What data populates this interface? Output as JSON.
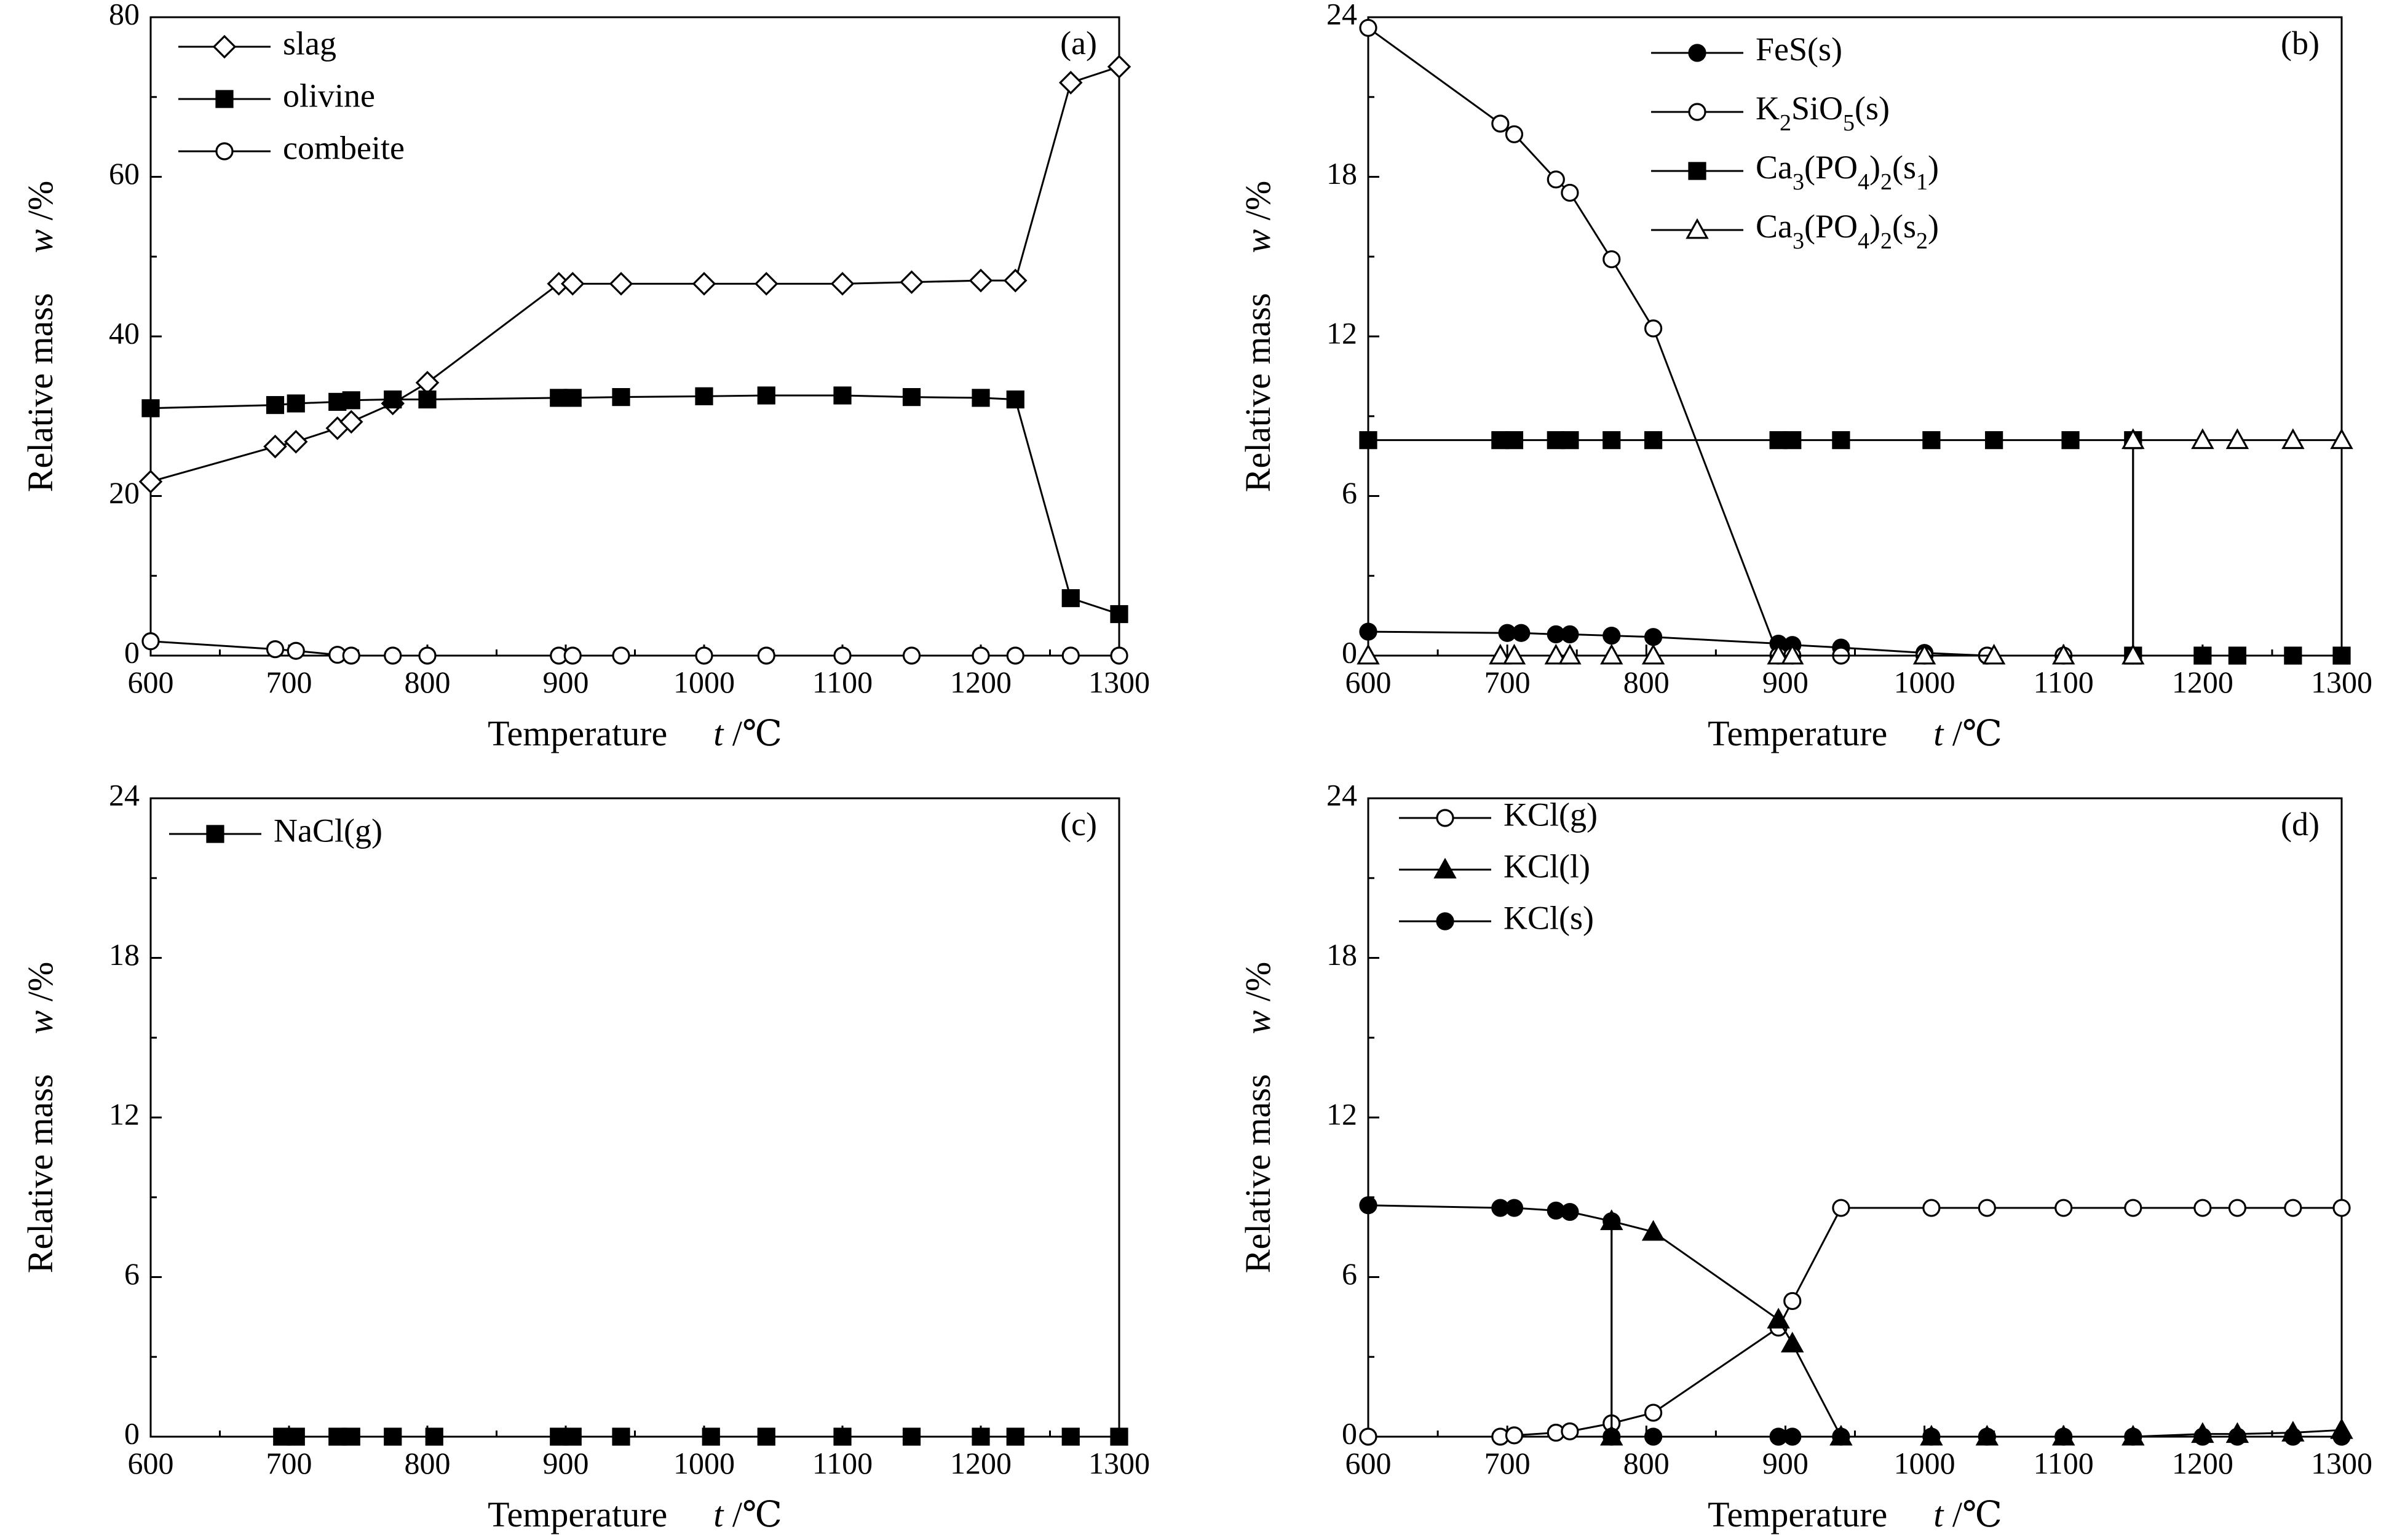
{
  "figure": {
    "x_axis_label": "Temperature",
    "x_axis_symbol": "t",
    "x_axis_unit": "/℃",
    "y_axis_label": "Relative mass",
    "y_axis_symbol": "w",
    "y_axis_unit": "/%"
  },
  "chart_data": [
    {
      "type": "line",
      "label": "(a)",
      "xlim": [
        600,
        1300
      ],
      "ylim": [
        0,
        80
      ],
      "x_ticks": [
        600,
        700,
        800,
        900,
        1000,
        1100,
        1200,
        1300
      ],
      "y_ticks": [
        0,
        20,
        40,
        60,
        80
      ],
      "legend_position": "top-left",
      "series": [
        {
          "name": "slag",
          "marker": "diamond-open",
          "points": [
            [
              600,
              21.8
            ],
            [
              690,
              26.2
            ],
            [
              705,
              26.8
            ],
            [
              735,
              28.5
            ],
            [
              745,
              29.3
            ],
            [
              775,
              31.6
            ],
            [
              800,
              34.2
            ],
            [
              895,
              46.6
            ],
            [
              905,
              46.6
            ],
            [
              940,
              46.6
            ],
            [
              1000,
              46.6
            ],
            [
              1045,
              46.6
            ],
            [
              1100,
              46.6
            ],
            [
              1150,
              46.8
            ],
            [
              1200,
              47
            ],
            [
              1225,
              47
            ],
            [
              1265,
              71.8
            ],
            [
              1300,
              73.8
            ]
          ]
        },
        {
          "name": "olivine",
          "marker": "square-filled",
          "points": [
            [
              600,
              31
            ],
            [
              690,
              31.4
            ],
            [
              705,
              31.6
            ],
            [
              735,
              31.8
            ],
            [
              745,
              32
            ],
            [
              775,
              32.1
            ],
            [
              800,
              32.1
            ],
            [
              895,
              32.3
            ],
            [
              905,
              32.3
            ],
            [
              940,
              32.4
            ],
            [
              1000,
              32.5
            ],
            [
              1045,
              32.6
            ],
            [
              1100,
              32.6
            ],
            [
              1150,
              32.4
            ],
            [
              1200,
              32.3
            ],
            [
              1225,
              32.1
            ],
            [
              1265,
              7.2
            ],
            [
              1300,
              5.2
            ]
          ]
        },
        {
          "name": "combeite",
          "marker": "circle-open",
          "points": [
            [
              600,
              1.8
            ],
            [
              690,
              0.8
            ],
            [
              705,
              0.6
            ],
            [
              735,
              0.1
            ],
            [
              745,
              0
            ],
            [
              775,
              0
            ],
            [
              800,
              0
            ],
            [
              895,
              0
            ],
            [
              905,
              0
            ],
            [
              940,
              0
            ],
            [
              1000,
              0
            ],
            [
              1045,
              0
            ],
            [
              1100,
              0
            ],
            [
              1150,
              0
            ],
            [
              1200,
              0
            ],
            [
              1225,
              0
            ],
            [
              1265,
              0
            ],
            [
              1300,
              0
            ]
          ]
        }
      ]
    },
    {
      "type": "line",
      "label": "(b)",
      "xlim": [
        600,
        1300
      ],
      "ylim": [
        0,
        24
      ],
      "x_ticks": [
        600,
        700,
        800,
        900,
        1000,
        1100,
        1200,
        1300
      ],
      "y_ticks": [
        0,
        6,
        12,
        18,
        24
      ],
      "legend_position": "top-center",
      "series": [
        {
          "name": "FeS(s)",
          "legend": {
            "base": "FeS(s)"
          },
          "marker": "circle-filled",
          "points": [
            [
              600,
              0.9
            ],
            [
              700,
              0.85
            ],
            [
              710,
              0.85
            ],
            [
              735,
              0.8
            ],
            [
              745,
              0.8
            ],
            [
              775,
              0.75
            ],
            [
              805,
              0.7
            ],
            [
              895,
              0.45
            ],
            [
              905,
              0.4
            ],
            [
              940,
              0.3
            ],
            [
              1000,
              0.1
            ],
            [
              1045,
              0
            ]
          ]
        },
        {
          "name": "K2SiO5(s)",
          "legend": {
            "base": "K",
            "s1": "2",
            "mid": "SiO",
            "s2": "5",
            "end": "(s)"
          },
          "marker": "circle-open",
          "points": [
            [
              600,
              23.6
            ],
            [
              695,
              20
            ],
            [
              705,
              19.6
            ],
            [
              735,
              17.9
            ],
            [
              745,
              17.4
            ],
            [
              775,
              14.9
            ],
            [
              805,
              12.3
            ],
            [
              895,
              0
            ],
            [
              905,
              0
            ],
            [
              940,
              0
            ],
            [
              1000,
              0
            ],
            [
              1045,
              0
            ],
            [
              1100,
              0
            ],
            [
              1150,
              0
            ]
          ]
        },
        {
          "name": "Ca3(PO4)2(s1)",
          "legend": {
            "base": "Ca",
            "s1": "3",
            "mid": "(PO",
            "s2": "4",
            "mid2": ")",
            "s3": "2",
            "mid3": "(s",
            "s4": "1",
            "end": ")"
          },
          "marker": "square-filled",
          "points": [
            [
              600,
              8.1
            ],
            [
              695,
              8.1
            ],
            [
              705,
              8.1
            ],
            [
              735,
              8.1
            ],
            [
              745,
              8.1
            ],
            [
              775,
              8.1
            ],
            [
              805,
              8.1
            ],
            [
              895,
              8.1
            ],
            [
              905,
              8.1
            ],
            [
              940,
              8.1
            ],
            [
              1005,
              8.1
            ],
            [
              1050,
              8.1
            ],
            [
              1105,
              8.1
            ],
            [
              1150,
              8.1
            ],
            [
              1150,
              0
            ],
            [
              1200,
              0
            ],
            [
              1225,
              0
            ],
            [
              1265,
              0
            ],
            [
              1300,
              0
            ]
          ]
        },
        {
          "name": "Ca3(PO4)2(s2)",
          "legend": {
            "base": "Ca",
            "s1": "3",
            "mid": "(PO",
            "s2": "4",
            "mid2": ")",
            "s3": "2",
            "mid3": "(s",
            "s4": "2",
            "end": ")"
          },
          "marker": "triangle-open",
          "points": [
            [
              600,
              0
            ],
            [
              695,
              0
            ],
            [
              705,
              0
            ],
            [
              735,
              0
            ],
            [
              745,
              0
            ],
            [
              775,
              0
            ],
            [
              805,
              0
            ],
            [
              895,
              0
            ],
            [
              905,
              0
            ],
            [
              1000,
              0
            ],
            [
              1050,
              0
            ],
            [
              1100,
              0
            ],
            [
              1150,
              0
            ],
            [
              1150,
              8.1
            ],
            [
              1200,
              8.1
            ],
            [
              1225,
              8.1
            ],
            [
              1265,
              8.1
            ],
            [
              1300,
              8.1
            ]
          ]
        }
      ]
    },
    {
      "type": "line",
      "label": "(c)",
      "xlim": [
        600,
        1300
      ],
      "ylim": [
        0,
        24
      ],
      "x_ticks": [
        600,
        700,
        800,
        900,
        1000,
        1100,
        1200,
        1300
      ],
      "y_ticks": [
        0,
        6,
        12,
        18,
        24
      ],
      "legend_position": "top-left",
      "series": [
        {
          "name": "NaCl(g)",
          "marker": "square-filled",
          "points": [
            [
              695,
              0
            ],
            [
              705,
              0
            ],
            [
              735,
              0
            ],
            [
              745,
              0
            ],
            [
              775,
              0
            ],
            [
              805,
              0
            ],
            [
              895,
              0
            ],
            [
              905,
              0
            ],
            [
              940,
              0
            ],
            [
              1005,
              0
            ],
            [
              1045,
              0
            ],
            [
              1100,
              0
            ],
            [
              1150,
              0
            ],
            [
              1200,
              0
            ],
            [
              1225,
              0
            ],
            [
              1265,
              0
            ],
            [
              1300,
              0
            ]
          ]
        }
      ]
    },
    {
      "type": "line",
      "label": "(d)",
      "xlim": [
        600,
        1300
      ],
      "ylim": [
        0,
        24
      ],
      "x_ticks": [
        600,
        700,
        800,
        900,
        1000,
        1100,
        1200,
        1300
      ],
      "y_ticks": [
        0,
        6,
        12,
        18,
        24
      ],
      "legend_position": "top-left",
      "series": [
        {
          "name": "KCl(g)",
          "marker": "circle-open",
          "points": [
            [
              600,
              0
            ],
            [
              695,
              0
            ],
            [
              705,
              0.05
            ],
            [
              735,
              0.15
            ],
            [
              745,
              0.2
            ],
            [
              775,
              0.5
            ],
            [
              805,
              0.9
            ],
            [
              895,
              4.1
            ],
            [
              905,
              5.1
            ],
            [
              940,
              8.6
            ],
            [
              1005,
              8.6
            ],
            [
              1045,
              8.6
            ],
            [
              1100,
              8.6
            ],
            [
              1150,
              8.6
            ],
            [
              1200,
              8.6
            ],
            [
              1225,
              8.6
            ],
            [
              1265,
              8.6
            ],
            [
              1300,
              8.6
            ]
          ]
        },
        {
          "name": "KCl(l)",
          "marker": "triangle-filled",
          "points": [
            [
              775,
              0
            ],
            [
              775,
              8.1
            ],
            [
              805,
              7.7
            ],
            [
              895,
              4.4
            ],
            [
              905,
              3.5
            ],
            [
              940,
              0
            ],
            [
              1005,
              0
            ],
            [
              1045,
              0
            ],
            [
              1100,
              0
            ],
            [
              1150,
              0
            ],
            [
              1200,
              0.1
            ],
            [
              1225,
              0.1
            ],
            [
              1265,
              0.15
            ],
            [
              1300,
              0.25
            ]
          ]
        },
        {
          "name": "KCl(s)",
          "marker": "circle-filled",
          "points": [
            [
              600,
              8.7
            ],
            [
              695,
              8.6
            ],
            [
              705,
              8.6
            ],
            [
              735,
              8.5
            ],
            [
              745,
              8.45
            ],
            [
              775,
              8.1
            ],
            [
              775,
              0
            ],
            [
              805,
              0
            ],
            [
              895,
              0
            ],
            [
              905,
              0
            ],
            [
              940,
              0
            ],
            [
              1005,
              0
            ],
            [
              1045,
              0
            ],
            [
              1100,
              0
            ],
            [
              1150,
              0
            ],
            [
              1200,
              0
            ],
            [
              1225,
              0
            ],
            [
              1265,
              0
            ],
            [
              1300,
              0
            ]
          ]
        }
      ]
    }
  ]
}
